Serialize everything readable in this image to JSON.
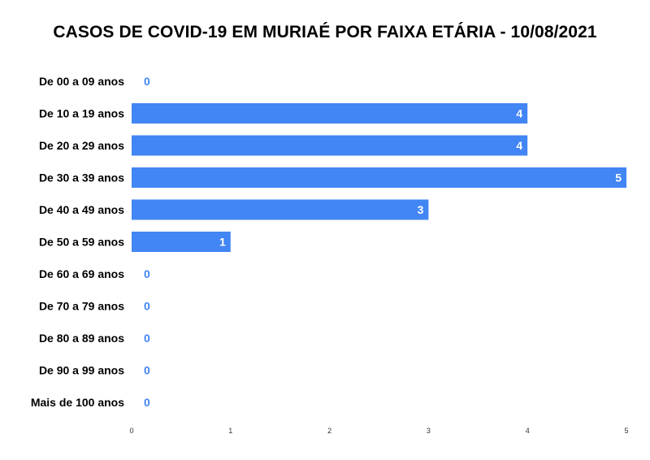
{
  "chart_data": {
    "type": "bar",
    "orientation": "horizontal",
    "title": "CASOS DE COVID-19 EM MURIAÉ POR FAIXA ETÁRIA - 10/08/2021",
    "categories": [
      "De 00 a 09 anos",
      "De 10 a 19 anos",
      "De 20 a 29 anos",
      "De 30 a 39 anos",
      "De 40 a 49 anos",
      "De 50 a 59 anos",
      "De 60 a 69 anos",
      "De 70 a 79 anos",
      "De 80 a 89 anos",
      "De 90 a 99 anos",
      "Mais de 100 anos"
    ],
    "values": [
      0,
      4,
      4,
      5,
      3,
      1,
      0,
      0,
      0,
      0,
      0
    ],
    "xlim": [
      0,
      5
    ],
    "x_ticks": [
      0,
      1,
      2,
      3,
      4,
      5
    ],
    "grid": false,
    "legend": "none",
    "bar_color": "#4285f4"
  }
}
